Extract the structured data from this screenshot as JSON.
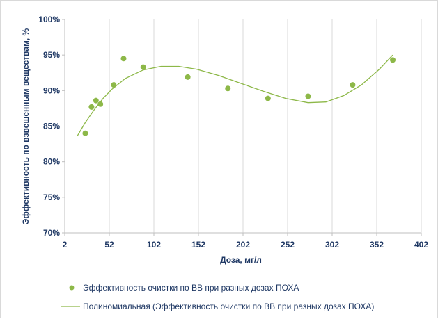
{
  "chart_data": {
    "type": "scatter",
    "xlabel": "Доза, мг/л",
    "ylabel": "Эффективность по взвешенным веществам, %",
    "xlim": [
      2,
      402
    ],
    "ylim": [
      70,
      100
    ],
    "x_ticks": [
      2,
      52,
      102,
      152,
      202,
      252,
      302,
      352,
      402
    ],
    "y_ticks": [
      70,
      75,
      80,
      85,
      90,
      95,
      100
    ],
    "y_tick_labels": [
      "70%",
      "75%",
      "80%",
      "85%",
      "90%",
      "95%",
      "100%"
    ],
    "grid": "vertical",
    "legend": "bottom",
    "series": [
      {
        "name": "Эффективность очистки по ВВ при разных дозах ПОХА",
        "marker_color": "#8db848",
        "points": [
          {
            "x": 25,
            "y": 84.0
          },
          {
            "x": 32,
            "y": 87.7
          },
          {
            "x": 37,
            "y": 88.6
          },
          {
            "x": 42,
            "y": 88.1
          },
          {
            "x": 57,
            "y": 90.8
          },
          {
            "x": 68,
            "y": 94.5
          },
          {
            "x": 90,
            "y": 93.3
          },
          {
            "x": 140,
            "y": 91.9
          },
          {
            "x": 185,
            "y": 90.3
          },
          {
            "x": 230,
            "y": 88.9
          },
          {
            "x": 275,
            "y": 89.2
          },
          {
            "x": 325,
            "y": 90.8
          },
          {
            "x": 370,
            "y": 94.3
          }
        ]
      },
      {
        "name": "Полиномиальная (Эффективность очистки по ВВ при разных дозах ПОХА)",
        "type": "line",
        "line_color": "#8db848",
        "points": [
          {
            "x": 16,
            "y": 83.6
          },
          {
            "x": 25,
            "y": 85.5
          },
          {
            "x": 35,
            "y": 87.3
          },
          {
            "x": 45,
            "y": 88.9
          },
          {
            "x": 55,
            "y": 90.2
          },
          {
            "x": 70,
            "y": 91.7
          },
          {
            "x": 90,
            "y": 92.9
          },
          {
            "x": 110,
            "y": 93.4
          },
          {
            "x": 130,
            "y": 93.4
          },
          {
            "x": 150,
            "y": 93.0
          },
          {
            "x": 175,
            "y": 92.1
          },
          {
            "x": 200,
            "y": 91.0
          },
          {
            "x": 225,
            "y": 89.9
          },
          {
            "x": 250,
            "y": 88.9
          },
          {
            "x": 275,
            "y": 88.3
          },
          {
            "x": 295,
            "y": 88.4
          },
          {
            "x": 315,
            "y": 89.3
          },
          {
            "x": 335,
            "y": 90.8
          },
          {
            "x": 355,
            "y": 93.0
          },
          {
            "x": 370,
            "y": 95.0
          }
        ]
      }
    ]
  }
}
